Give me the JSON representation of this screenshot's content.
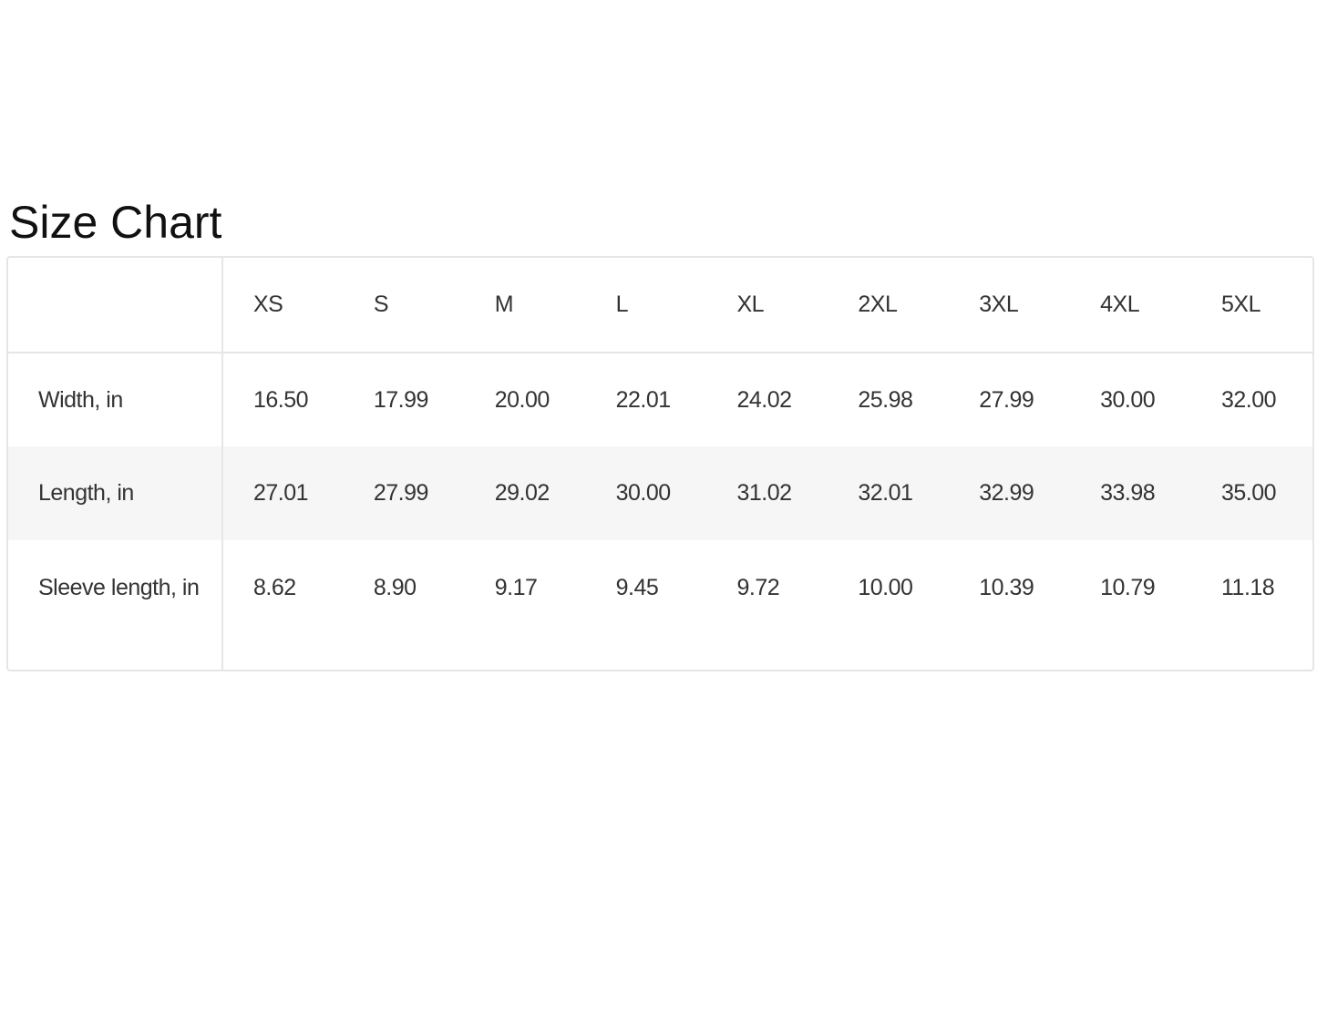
{
  "title": "Size Chart",
  "table": {
    "columns": [
      "",
      "XS",
      "S",
      "M",
      "L",
      "XL",
      "2XL",
      "3XL",
      "4XL",
      "5XL"
    ],
    "rows": [
      {
        "label": "Width, in",
        "values": [
          "16.50",
          "17.99",
          "20.00",
          "22.01",
          "24.02",
          "25.98",
          "27.99",
          "30.00",
          "32.00"
        ]
      },
      {
        "label": "Length, in",
        "values": [
          "27.01",
          "27.99",
          "29.02",
          "30.00",
          "31.02",
          "32.01",
          "32.99",
          "33.98",
          "35.00"
        ]
      },
      {
        "label": "Sleeve length, in",
        "values": [
          "8.62",
          "8.90",
          "9.17",
          "9.45",
          "9.72",
          "10.00",
          "10.39",
          "10.79",
          "11.18"
        ]
      }
    ]
  },
  "colors": {
    "border": "#e6e6e6",
    "stripe": "#f6f6f6",
    "text": "#333333"
  }
}
